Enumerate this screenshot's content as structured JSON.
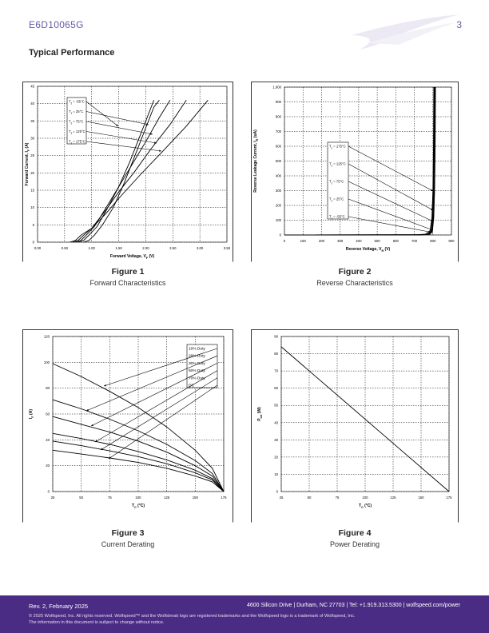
{
  "header": {
    "part_number": "E6D10065G",
    "page_number": "3"
  },
  "section_title": "Typical Performance",
  "colors": {
    "brand_purple": "#4b2c84",
    "header_text": "#6b5aa8",
    "plot_line": "#000000",
    "grid": "#000000"
  },
  "figures": [
    {
      "number": "Figure 1",
      "caption": "Forward Characteristics"
    },
    {
      "number": "Figure 2",
      "caption": "Reverse Characteristics"
    },
    {
      "number": "Figure 3",
      "caption": "Current Derating"
    },
    {
      "number": "Figure 4",
      "caption": "Power Derating"
    }
  ],
  "chart_data": [
    {
      "type": "line",
      "xlabel": "Forward Voltage, V_F (V)",
      "ylabel": "Forward Current, I_F (A)",
      "xlim": [
        0,
        3.5
      ],
      "ylim": [
        0,
        45
      ],
      "x_ticks": [
        "0.00",
        "0.50",
        "1.00",
        "1.50",
        "2.00",
        "2.50",
        "3.00",
        "3.50"
      ],
      "y_ticks": [
        "0",
        "5",
        "10",
        "15",
        "20",
        "25",
        "30",
        "35",
        "40",
        "45"
      ],
      "grid": "dashed",
      "legend_position": "top-left",
      "series": [
        {
          "name": "T_J = -55°C",
          "points": [
            [
              0.85,
              0
            ],
            [
              0.95,
              0.5
            ],
            [
              1.05,
              2
            ],
            [
              1.2,
              5
            ],
            [
              1.4,
              10
            ],
            [
              1.6,
              17
            ],
            [
              1.8,
              25
            ],
            [
              2.0,
              33
            ],
            [
              2.15,
              39
            ],
            [
              2.25,
              41
            ]
          ]
        },
        {
          "name": "T_J = 25°C",
          "points": [
            [
              0.75,
              0
            ],
            [
              0.85,
              0.5
            ],
            [
              0.95,
              2
            ],
            [
              1.1,
              4.5
            ],
            [
              1.3,
              10
            ],
            [
              1.5,
              16
            ],
            [
              1.7,
              23
            ],
            [
              1.9,
              31
            ],
            [
              2.1,
              39
            ],
            [
              2.15,
              41
            ]
          ]
        },
        {
          "name": "T_J = 75°C",
          "points": [
            [
              0.7,
              0
            ],
            [
              0.8,
              0.5
            ],
            [
              0.9,
              2
            ],
            [
              1.05,
              4.5
            ],
            [
              1.25,
              9.5
            ],
            [
              1.5,
              16
            ],
            [
              1.75,
              22.5
            ],
            [
              2.0,
              29
            ],
            [
              2.25,
              36
            ],
            [
              2.45,
              41
            ]
          ]
        },
        {
          "name": "T_J = 125°C",
          "points": [
            [
              0.65,
              0
            ],
            [
              0.75,
              0.5
            ],
            [
              0.85,
              2
            ],
            [
              1.0,
              4
            ],
            [
              1.25,
              9
            ],
            [
              1.5,
              14.5
            ],
            [
              1.8,
              20.5
            ],
            [
              2.1,
              27
            ],
            [
              2.45,
              34
            ],
            [
              2.75,
              41
            ]
          ]
        },
        {
          "name": "T_J = 175°C",
          "points": [
            [
              0.6,
              0
            ],
            [
              0.7,
              0.5
            ],
            [
              0.8,
              2
            ],
            [
              1.0,
              4
            ],
            [
              1.25,
              8
            ],
            [
              1.55,
              13.5
            ],
            [
              1.9,
              19.5
            ],
            [
              2.3,
              26
            ],
            [
              2.75,
              33.5
            ],
            [
              3.15,
              41
            ]
          ]
        }
      ]
    },
    {
      "type": "line",
      "xlabel": "Reverse Voltage, V_R (V)",
      "ylabel": "Reverse Leakage Current, I_R (uA)",
      "xlim": [
        0,
        900
      ],
      "ylim": [
        0,
        1000
      ],
      "x_ticks": [
        "0",
        "100",
        "200",
        "300",
        "400",
        "500",
        "600",
        "700",
        "800",
        "900"
      ],
      "y_ticks": [
        "0",
        "100",
        "200",
        "300",
        "400",
        "500",
        "600",
        "700",
        "800",
        "900",
        "1,000"
      ],
      "grid": "dashed",
      "legend_position": "center-left",
      "series": [
        {
          "name": "T_J = 175°C",
          "points": [
            [
              0,
              0
            ],
            [
              700,
              1
            ],
            [
              760,
              5
            ],
            [
              785,
              30
            ],
            [
              795,
              120
            ],
            [
              800,
              300
            ],
            [
              803,
              600
            ],
            [
              805,
              1000
            ]
          ]
        },
        {
          "name": "T_J = 125°C",
          "points": [
            [
              0,
              0
            ],
            [
              720,
              1
            ],
            [
              770,
              5
            ],
            [
              790,
              30
            ],
            [
              798,
              120
            ],
            [
              802,
              300
            ],
            [
              805,
              600
            ],
            [
              807,
              1000
            ]
          ]
        },
        {
          "name": "T_J = 75°C",
          "points": [
            [
              0,
              0
            ],
            [
              730,
              1
            ],
            [
              775,
              5
            ],
            [
              793,
              30
            ],
            [
              800,
              120
            ],
            [
              804,
              300
            ],
            [
              807,
              600
            ],
            [
              809,
              1000
            ]
          ]
        },
        {
          "name": "T_J = 25°C",
          "points": [
            [
              0,
              0
            ],
            [
              740,
              1
            ],
            [
              780,
              5
            ],
            [
              795,
              30
            ],
            [
              802,
              120
            ],
            [
              806,
              300
            ],
            [
              809,
              600
            ],
            [
              811,
              1000
            ]
          ]
        },
        {
          "name": "T_J = -55°C",
          "points": [
            [
              0,
              0
            ],
            [
              750,
              1
            ],
            [
              785,
              5
            ],
            [
              798,
              30
            ],
            [
              805,
              120
            ],
            [
              809,
              300
            ],
            [
              812,
              600
            ],
            [
              814,
              1000
            ]
          ]
        }
      ]
    },
    {
      "type": "line",
      "xlabel": "T_C (°C)",
      "ylabel": "I_F (A)",
      "xlim": [
        25,
        175
      ],
      "ylim": [
        0,
        120
      ],
      "x_ticks": [
        "25",
        "50",
        "75",
        "100",
        "125",
        "150",
        "175"
      ],
      "y_ticks": [
        "0",
        "20",
        "40",
        "60",
        "80",
        "100",
        "120"
      ],
      "grid": "dashed",
      "legend_position": "top-right",
      "series": [
        {
          "name": "10% Duty",
          "points": [
            [
              25,
              99
            ],
            [
              50,
              89
            ],
            [
              75,
              77.5
            ],
            [
              100,
              65
            ],
            [
              125,
              50
            ],
            [
              150,
              32
            ],
            [
              165,
              18
            ],
            [
              175,
              0
            ]
          ]
        },
        {
          "name": "20% Duty",
          "points": [
            [
              25,
              71
            ],
            [
              50,
              64
            ],
            [
              75,
              56
            ],
            [
              100,
              47
            ],
            [
              125,
              36.5
            ],
            [
              150,
              24
            ],
            [
              165,
              14
            ],
            [
              175,
              0
            ]
          ]
        },
        {
          "name": "30% Duty",
          "points": [
            [
              25,
              58
            ],
            [
              50,
              52
            ],
            [
              75,
              46
            ],
            [
              100,
              39
            ],
            [
              125,
              30.5
            ],
            [
              150,
              20
            ],
            [
              165,
              12
            ],
            [
              175,
              0
            ]
          ]
        },
        {
          "name": "50% Duty",
          "points": [
            [
              25,
              45
            ],
            [
              50,
              41
            ],
            [
              75,
              36.5
            ],
            [
              100,
              31
            ],
            [
              125,
              24.5
            ],
            [
              150,
              16.5
            ],
            [
              165,
              10
            ],
            [
              175,
              0
            ]
          ]
        },
        {
          "name": "70% Duty",
          "points": [
            [
              25,
              39
            ],
            [
              50,
              35.5
            ],
            [
              75,
              31.5
            ],
            [
              100,
              27
            ],
            [
              125,
              21.5
            ],
            [
              150,
              14.5
            ],
            [
              165,
              9
            ],
            [
              175,
              0
            ]
          ]
        },
        {
          "name": "DC",
          "points": [
            [
              25,
              32
            ],
            [
              50,
              29
            ],
            [
              75,
              26
            ],
            [
              100,
              22.5
            ],
            [
              125,
              18
            ],
            [
              150,
              12
            ],
            [
              165,
              7.5
            ],
            [
              175,
              0
            ]
          ]
        }
      ]
    },
    {
      "type": "line",
      "xlabel": "T_C (°C)",
      "ylabel": "P_tot (W)",
      "xlim": [
        25,
        175
      ],
      "ylim": [
        0,
        90
      ],
      "x_ticks": [
        "25",
        "50",
        "75",
        "100",
        "125",
        "150",
        "175"
      ],
      "y_ticks": [
        "0",
        "10",
        "20",
        "30",
        "40",
        "50",
        "60",
        "70",
        "80",
        "90"
      ],
      "grid": "dashed",
      "series": [
        {
          "name": "",
          "points": [
            [
              25,
              84
            ],
            [
              175,
              0
            ]
          ]
        }
      ]
    }
  ],
  "footer": {
    "revision": "Rev. 2, February 2025",
    "address": "4600 Silicon Drive | Durham, NC 27703 | Tel: +1.919.313.5300 | wolfspeed.com/power",
    "legal_line1": "© 2025 Wolfspeed, Inc. All rights reserved. Wolfspeed™ and the Wolfstreak logo are registered trademarks and the Wolfspeed logo is a trademark of Wolfspeed, Inc.",
    "legal_line2": "The information in this document is subject to change without notice."
  }
}
